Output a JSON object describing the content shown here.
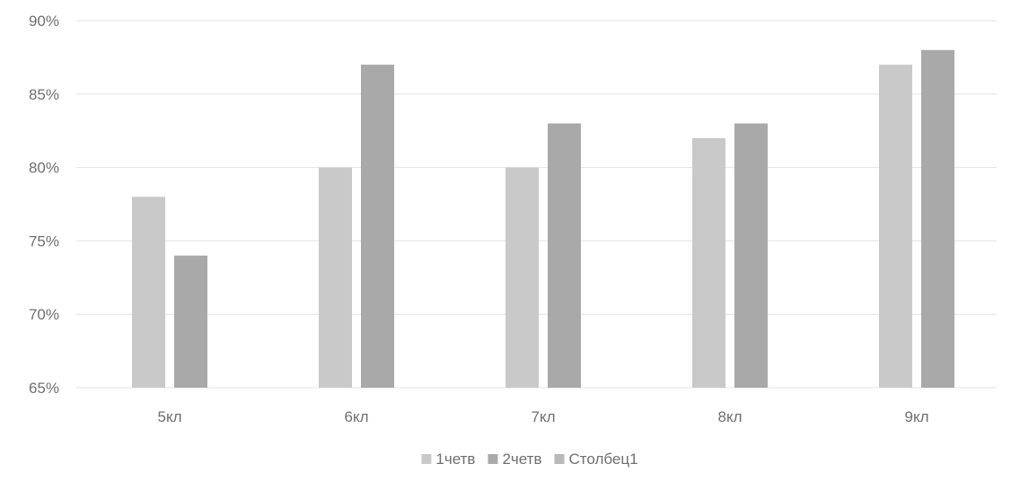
{
  "chart_data": {
    "type": "bar",
    "categories": [
      "5кл",
      "6кл",
      "7кл",
      "8кл",
      "9кл"
    ],
    "series": [
      {
        "name": "1четв",
        "color": "#c9c9c9",
        "values": [
          0.78,
          0.8,
          0.8,
          0.82,
          0.87
        ]
      },
      {
        "name": "2четв",
        "color": "#a9a9a9",
        "values": [
          0.74,
          0.87,
          0.83,
          0.83,
          0.88
        ]
      },
      {
        "name": "Столбец1",
        "color": "#b9b9b9",
        "values": [
          null,
          null,
          null,
          null,
          null
        ]
      }
    ],
    "yticks": [
      "90%",
      "85%",
      "80%",
      "75%",
      "70%",
      "65%"
    ],
    "ylim": [
      0.65,
      0.9
    ],
    "grid": true,
    "legend_position": "bottom",
    "title": "",
    "xlabel": "",
    "ylabel": ""
  }
}
